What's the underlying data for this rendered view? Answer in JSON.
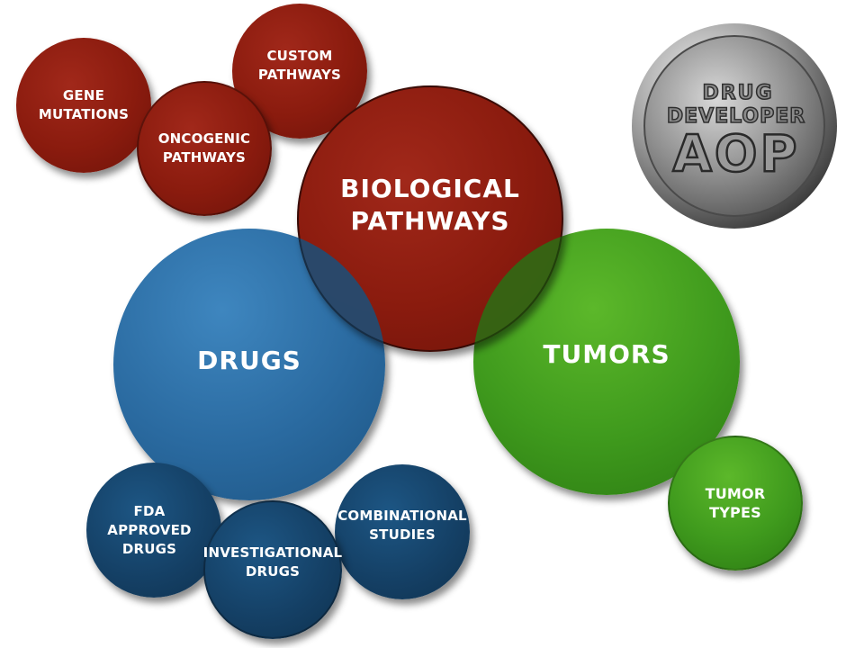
{
  "bubbles": {
    "gene_mutations": {
      "lines": [
        "GENE",
        "MUTATIONS"
      ]
    },
    "custom_pathways": {
      "lines": [
        "CUSTOM",
        "PATHWAYS"
      ]
    },
    "oncogenic_pathways": {
      "lines": [
        "ONCOGENIC",
        "PATHWAYS"
      ]
    },
    "biological_pathways": {
      "lines": [
        "BIOLOGICAL",
        "PATHWAYS"
      ]
    },
    "drugs": {
      "lines": [
        "DRUGS"
      ]
    },
    "tumors": {
      "lines": [
        "TUMORS"
      ]
    },
    "tumor_types": {
      "lines": [
        "TUMOR",
        "TYPES"
      ]
    },
    "fda_approved_drugs": {
      "lines": [
        "FDA",
        "APPROVED",
        "DRUGS"
      ]
    },
    "investigational_drugs": {
      "lines": [
        "INVESTIGATIONAL",
        "DRUGS"
      ]
    },
    "combinational_studies": {
      "lines": [
        "COMBINATIONAL",
        "STUDIES"
      ]
    }
  },
  "logo": {
    "line1": "DRUG",
    "line2": "DEVELOPER",
    "line3": "AOP"
  },
  "colors": {
    "red": "#8a1b0e",
    "blue": "#2a6aa0",
    "navy": "#143f64",
    "green": "#3f9a1d",
    "silver": "#9a9a9a"
  }
}
